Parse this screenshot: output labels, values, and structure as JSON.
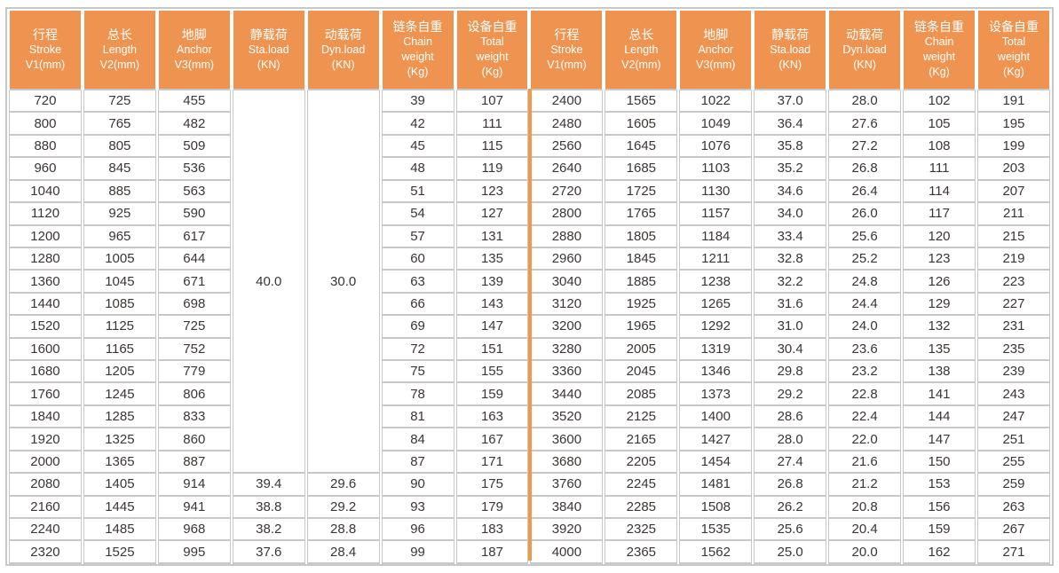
{
  "colors": {
    "header_bg": "#EF9450",
    "header_text": "#FFFFFF",
    "divider_orange": "#F09A48",
    "grid_border": "#C8C8C8",
    "data_text": "#3B3533"
  },
  "table": {
    "header_repeat": 2,
    "header_columns": [
      {
        "key": "stroke",
        "lines": [
          "行程",
          "Stroke",
          "V1(mm)"
        ]
      },
      {
        "key": "length",
        "lines": [
          "总长",
          "Length",
          "V2(mm)"
        ]
      },
      {
        "key": "anchor",
        "lines": [
          "地脚",
          "Anchor",
          "V3(mm)"
        ]
      },
      {
        "key": "sta-load",
        "lines": [
          "静载荷",
          "Sta.load",
          "(KN)"
        ]
      },
      {
        "key": "dyn-load",
        "lines": [
          "动载荷",
          "Dyn.load",
          "(KN)"
        ]
      },
      {
        "key": "chain-weight",
        "lines": [
          "链条自重",
          "Chain",
          "weight",
          "(Kg)"
        ]
      },
      {
        "key": "total-weight",
        "lines": [
          "设备自重",
          "Total",
          "weight",
          "(Kg)"
        ]
      }
    ],
    "merge": {
      "columns": [
        3,
        4
      ],
      "start_row": 0,
      "span": 17
    },
    "rows": [
      [
        "720",
        "725",
        "455",
        "40.0",
        "30.0",
        "39",
        "107",
        "2400",
        "1565",
        "1022",
        "37.0",
        "28.0",
        "102",
        "191"
      ],
      [
        "800",
        "765",
        "482",
        null,
        null,
        "42",
        "111",
        "2480",
        "1605",
        "1049",
        "36.4",
        "27.6",
        "105",
        "195"
      ],
      [
        "880",
        "805",
        "509",
        null,
        null,
        "45",
        "115",
        "2560",
        "1645",
        "1076",
        "35.8",
        "27.2",
        "108",
        "199"
      ],
      [
        "960",
        "845",
        "536",
        null,
        null,
        "48",
        "119",
        "2640",
        "1685",
        "1103",
        "35.2",
        "26.8",
        "111",
        "203"
      ],
      [
        "1040",
        "885",
        "563",
        null,
        null,
        "51",
        "123",
        "2720",
        "1725",
        "1130",
        "34.6",
        "26.4",
        "114",
        "207"
      ],
      [
        "1120",
        "925",
        "590",
        null,
        null,
        "54",
        "127",
        "2800",
        "1765",
        "1157",
        "34.0",
        "26.0",
        "117",
        "211"
      ],
      [
        "1200",
        "965",
        "617",
        null,
        null,
        "57",
        "131",
        "2880",
        "1805",
        "1184",
        "33.4",
        "25.6",
        "120",
        "215"
      ],
      [
        "1280",
        "1005",
        "644",
        null,
        null,
        "60",
        "135",
        "2960",
        "1845",
        "1211",
        "32.8",
        "25.2",
        "123",
        "219"
      ],
      [
        "1360",
        "1045",
        "671",
        null,
        null,
        "63",
        "139",
        "3040",
        "1885",
        "1238",
        "32.2",
        "24.8",
        "126",
        "223"
      ],
      [
        "1440",
        "1085",
        "698",
        null,
        null,
        "66",
        "143",
        "3120",
        "1925",
        "1265",
        "31.6",
        "24.4",
        "129",
        "227"
      ],
      [
        "1520",
        "1125",
        "725",
        null,
        null,
        "69",
        "147",
        "3200",
        "1965",
        "1292",
        "31.0",
        "24.0",
        "132",
        "231"
      ],
      [
        "1600",
        "1165",
        "752",
        null,
        null,
        "72",
        "151",
        "3280",
        "2005",
        "1319",
        "30.4",
        "23.6",
        "135",
        "235"
      ],
      [
        "1680",
        "1205",
        "779",
        null,
        null,
        "75",
        "155",
        "3360",
        "2045",
        "1346",
        "29.8",
        "23.2",
        "138",
        "239"
      ],
      [
        "1760",
        "1245",
        "806",
        null,
        null,
        "78",
        "159",
        "3440",
        "2085",
        "1373",
        "29.2",
        "22.8",
        "141",
        "243"
      ],
      [
        "1840",
        "1285",
        "833",
        null,
        null,
        "81",
        "163",
        "3520",
        "2125",
        "1400",
        "28.6",
        "22.4",
        "144",
        "247"
      ],
      [
        "1920",
        "1325",
        "860",
        null,
        null,
        "84",
        "167",
        "3600",
        "2165",
        "1427",
        "28.0",
        "22.0",
        "147",
        "251"
      ],
      [
        "2000",
        "1365",
        "887",
        null,
        null,
        "87",
        "171",
        "3680",
        "2205",
        "1454",
        "27.4",
        "21.6",
        "150",
        "255"
      ],
      [
        "2080",
        "1405",
        "914",
        "39.4",
        "29.6",
        "90",
        "175",
        "3760",
        "2245",
        "1481",
        "26.8",
        "21.2",
        "153",
        "259"
      ],
      [
        "2160",
        "1445",
        "941",
        "38.8",
        "29.2",
        "93",
        "179",
        "3840",
        "2285",
        "1508",
        "26.2",
        "20.8",
        "156",
        "263"
      ],
      [
        "2240",
        "1485",
        "968",
        "38.2",
        "28.8",
        "96",
        "183",
        "3920",
        "2325",
        "1535",
        "25.6",
        "20.4",
        "159",
        "267"
      ],
      [
        "2320",
        "1525",
        "995",
        "37.6",
        "28.4",
        "99",
        "187",
        "4000",
        "2365",
        "1562",
        "25.0",
        "20.0",
        "162",
        "271"
      ]
    ]
  }
}
